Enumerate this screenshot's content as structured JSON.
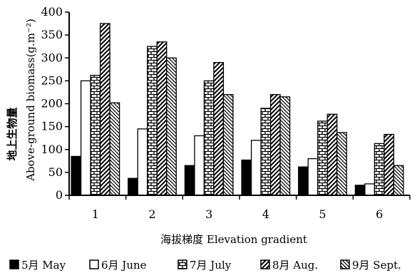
{
  "chart_data": {
    "type": "bar",
    "title": "",
    "xlabel": "海拔梯度 Elevation gradient",
    "ylabel_cn": "地上生物量",
    "ylabel_en": "Above-ground biomass(g.m⁻²)",
    "ylim": [
      0,
      400
    ],
    "yticks": [
      "0",
      "50",
      "100",
      "150",
      "200",
      "250",
      "300",
      "350",
      "400"
    ],
    "categories": [
      "1",
      "2",
      "3",
      "4",
      "5",
      "6"
    ],
    "legend_position": "bottom",
    "series": [
      {
        "name": "5月 May",
        "pattern": "solid",
        "values": [
          85,
          37,
          65,
          77,
          62,
          22
        ]
      },
      {
        "name": "6月 June",
        "pattern": "hollow",
        "values": [
          250,
          145,
          130,
          120,
          80,
          25
        ]
      },
      {
        "name": "7月 July",
        "pattern": "brick",
        "values": [
          262,
          325,
          250,
          190,
          162,
          113
        ]
      },
      {
        "name": "8月 Aug.",
        "pattern": "diag",
        "values": [
          375,
          335,
          290,
          220,
          177,
          133
        ]
      },
      {
        "name": "9月 Sept.",
        "pattern": "diagfine",
        "values": [
          202,
          300,
          220,
          215,
          137,
          65
        ]
      }
    ]
  }
}
